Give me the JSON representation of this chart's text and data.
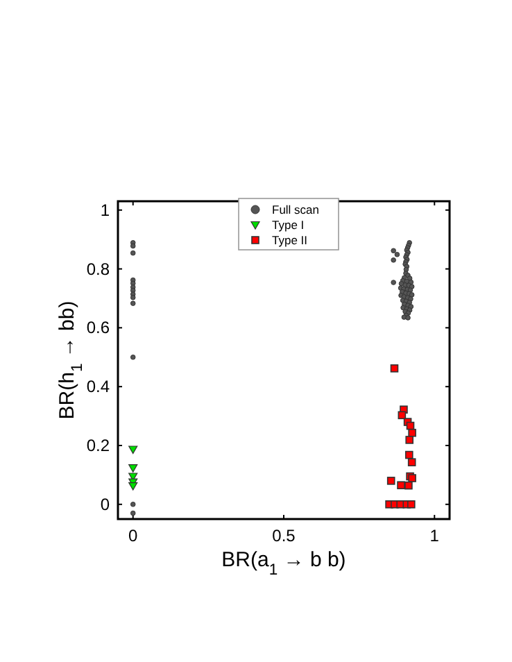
{
  "chart_data": {
    "type": "scatter",
    "xlabel": "BR(a$_{1}$ → b b)",
    "ylabel": "BR(h$_{1}$ → bb)",
    "xlim": [
      -0.05,
      1.05
    ],
    "ylim": [
      -0.05,
      1.03
    ],
    "xticks": [
      0,
      0.5,
      1
    ],
    "yticks": [
      0,
      0.2,
      0.4,
      0.6,
      0.8,
      1
    ],
    "legend": "top",
    "grid": false,
    "series": [
      {
        "name": "Full scan",
        "color": "#555555",
        "marker": "circle",
        "x": [
          0,
          0,
          0,
          0,
          0,
          0,
          0,
          0,
          0,
          0,
          0,
          0,
          0,
          0.917,
          0.914,
          0.911,
          0.908,
          0.912,
          0.908,
          0.905,
          0.909,
          0.905,
          0.903,
          0.908,
          0.906,
          0.864,
          0.876,
          0.864,
          0.864,
          0.905,
          0.912,
          0.9,
          0.918,
          0.895,
          0.908,
          0.922,
          0.89,
          0.903,
          0.915,
          0.925,
          0.888,
          0.898,
          0.91,
          0.92,
          0.893,
          0.905,
          0.916,
          0.925,
          0.889,
          0.899,
          0.911,
          0.921,
          0.895,
          0.906,
          0.917,
          0.9,
          0.912,
          0.922,
          0.896,
          0.908,
          0.918,
          0.903,
          0.913,
          0.906,
          0.899,
          0.912
        ],
        "values": [
          0.889,
          0.878,
          0.854,
          0.762,
          0.751,
          0.738,
          0.727,
          0.714,
          0.703,
          0.683,
          0.5,
          0,
          -0.03,
          0.889,
          0.88,
          0.872,
          0.864,
          0.856,
          0.848,
          0.84,
          0.832,
          0.824,
          0.816,
          0.808,
          0.798,
          0.862,
          0.849,
          0.83,
          0.754,
          0.785,
          0.778,
          0.77,
          0.768,
          0.76,
          0.758,
          0.755,
          0.75,
          0.745,
          0.744,
          0.74,
          0.735,
          0.732,
          0.73,
          0.728,
          0.722,
          0.718,
          0.716,
          0.712,
          0.71,
          0.705,
          0.702,
          0.698,
          0.693,
          0.69,
          0.686,
          0.68,
          0.676,
          0.672,
          0.668,
          0.664,
          0.66,
          0.655,
          0.65,
          0.642,
          0.636,
          0.634
        ]
      },
      {
        "name": "Type I",
        "color": "#00dd00",
        "marker": "triangle",
        "x": [
          0,
          0,
          0,
          0,
          0
        ],
        "values": [
          0.187,
          0.124,
          0.095,
          0.076,
          0.063
        ]
      },
      {
        "name": "Type II",
        "color": "#ff0000",
        "marker": "square",
        "x": [
          0.867,
          0.898,
          0.892,
          0.911,
          0.92,
          0.926,
          0.917,
          0.916,
          0.925,
          0.919,
          0.926,
          0.856,
          0.889,
          0.914,
          0.85,
          0.868,
          0.887,
          0.908,
          0.923
        ],
        "values": [
          0.462,
          0.322,
          0.303,
          0.28,
          0.267,
          0.243,
          0.219,
          0.168,
          0.143,
          0.095,
          0.089,
          0.08,
          0.065,
          0.064,
          0,
          0,
          0,
          0,
          0
        ]
      }
    ]
  }
}
